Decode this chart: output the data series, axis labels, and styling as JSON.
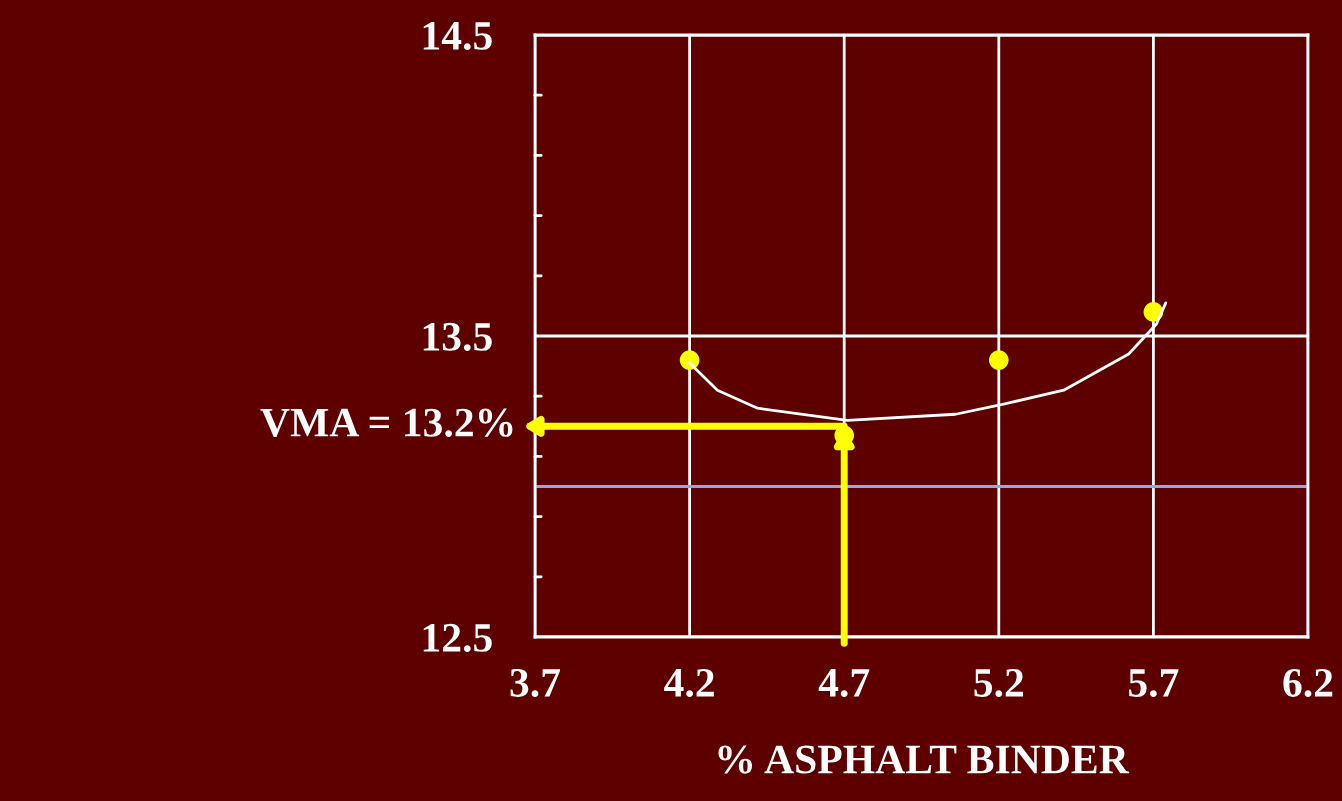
{
  "chart_data": {
    "type": "scatter",
    "xlabel": "% ASPHALT BINDER",
    "series": [
      {
        "color": "#ffff00",
        "x": [
          4.2,
          4.7,
          5.2,
          5.7
        ],
        "values": [
          13.42,
          13.17,
          13.42,
          13.58
        ],
        "marker": "circle"
      },
      {
        "type": "line",
        "color": "#ffffff",
        "x": [
          4.2,
          4.29,
          4.42,
          4.71,
          5.06,
          5.2,
          5.41,
          5.62,
          5.71,
          5.74
        ],
        "values": [
          13.41,
          13.32,
          13.26,
          13.22,
          13.24,
          13.27,
          13.32,
          13.44,
          13.54,
          13.61
        ],
        "marker": "none",
        "line_style": "solid"
      }
    ],
    "xlim": [
      3.7,
      6.2
    ],
    "xticks": [
      3.7,
      4.2,
      4.7,
      5.2,
      5.7,
      6.2
    ],
    "ylim": [
      12.5,
      14.5
    ],
    "yticks": [
      12.5,
      {
        "value": 12.7,
        "label": null
      },
      {
        "value": 12.9,
        "label": null
      },
      {
        "value": 13.1,
        "label": null
      },
      {
        "value": 13.3,
        "label": null
      },
      13.5,
      {
        "value": 13.7,
        "label": null
      },
      {
        "value": 13.9,
        "label": null
      },
      {
        "value": 14.1,
        "label": null
      },
      {
        "value": 14.3,
        "label": null
      },
      14.5
    ],
    "grid": true,
    "ref_lines": [
      {
        "axis": "y",
        "value": 13.0,
        "color": "#8fa8e8"
      }
    ],
    "annotations": [
      {
        "text": "VMA = 13.2%",
        "x": 4.7,
        "y": 13.2
      }
    ]
  }
}
